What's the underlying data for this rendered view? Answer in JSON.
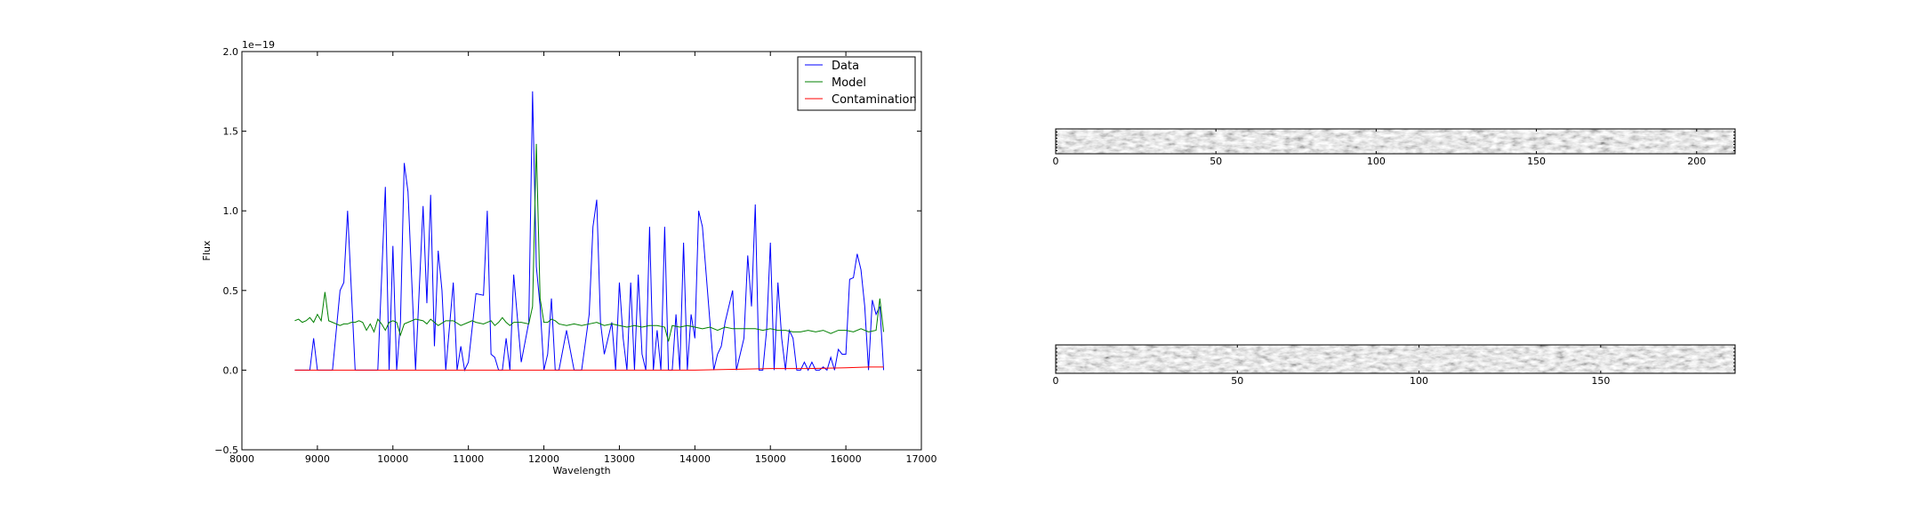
{
  "chart_data": [
    {
      "type": "line",
      "title": "",
      "xlabel": "Wavelength",
      "ylabel": "Flux",
      "y_offset_text": "1e−19",
      "xlim": [
        8000,
        17000
      ],
      "ylim": [
        -0.5,
        2.0
      ],
      "xticks": [
        "8000",
        "9000",
        "10000",
        "11000",
        "12000",
        "13000",
        "14000",
        "15000",
        "16000",
        "17000"
      ],
      "yticks": [
        "−0.5",
        "0.0",
        "0.5",
        "1.0",
        "1.5",
        "2.0"
      ],
      "grid": false,
      "legend": "top-right",
      "series": [
        {
          "name": "Data",
          "color": "#0000ff",
          "x": [
            8700,
            8800,
            8900,
            8950,
            9000,
            9100,
            9200,
            9300,
            9350,
            9400,
            9500,
            9600,
            9700,
            9800,
            9900,
            9950,
            10000,
            10050,
            10100,
            10150,
            10200,
            10300,
            10400,
            10450,
            10500,
            10550,
            10600,
            10650,
            10700,
            10800,
            10850,
            10900,
            10950,
            11000,
            11100,
            11200,
            11250,
            11300,
            11350,
            11400,
            11450,
            11500,
            11550,
            11600,
            11700,
            11800,
            11850,
            11900,
            11950,
            12000,
            12050,
            12100,
            12150,
            12200,
            12300,
            12400,
            12500,
            12600,
            12650,
            12700,
            12750,
            12800,
            12900,
            12950,
            13000,
            13050,
            13100,
            13150,
            13200,
            13250,
            13300,
            13350,
            13400,
            13450,
            13500,
            13550,
            13600,
            13650,
            13700,
            13750,
            13800,
            13850,
            13900,
            13950,
            14000,
            14050,
            14100,
            14150,
            14200,
            14250,
            14300,
            14350,
            14400,
            14450,
            14500,
            14550,
            14600,
            14650,
            14700,
            14750,
            14800,
            14850,
            14900,
            14950,
            15000,
            15050,
            15100,
            15150,
            15200,
            15250,
            15300,
            15350,
            15400,
            15450,
            15500,
            15550,
            15600,
            15650,
            15700,
            15750,
            15800,
            15850,
            15900,
            15950,
            16000,
            16050,
            16100,
            16150,
            16200,
            16250,
            16300,
            16350,
            16400,
            16450,
            16500
          ],
          "values": [
            0.0,
            0.0,
            0.0,
            0.2,
            0.0,
            0.0,
            0.0,
            0.5,
            0.55,
            1.0,
            0.0,
            0.0,
            0.0,
            0.0,
            1.15,
            0.0,
            0.78,
            0.0,
            0.3,
            1.3,
            1.12,
            0.0,
            1.03,
            0.42,
            1.1,
            0.15,
            0.75,
            0.5,
            0.0,
            0.55,
            0.0,
            0.15,
            0.0,
            0.05,
            0.48,
            0.47,
            1.0,
            0.1,
            0.08,
            0.0,
            0.0,
            0.2,
            0.0,
            0.6,
            0.05,
            0.3,
            1.75,
            0.65,
            0.4,
            0.0,
            0.1,
            0.45,
            0.0,
            0.0,
            0.25,
            0.0,
            0.0,
            0.35,
            0.9,
            1.07,
            0.3,
            0.1,
            0.3,
            0.0,
            0.55,
            0.2,
            0.0,
            0.55,
            0.0,
            0.6,
            0.1,
            0.0,
            0.9,
            0.0,
            0.25,
            0.0,
            0.9,
            0.0,
            0.0,
            0.35,
            0.0,
            0.8,
            0.0,
            0.35,
            0.2,
            1.0,
            0.9,
            0.6,
            0.3,
            0.0,
            0.1,
            0.15,
            0.3,
            0.4,
            0.5,
            0.0,
            0.1,
            0.2,
            0.72,
            0.4,
            1.04,
            0.0,
            0.0,
            0.25,
            0.8,
            0.0,
            0.55,
            0.2,
            0.0,
            0.25,
            0.2,
            0.0,
            0.0,
            0.05,
            0.0,
            0.05,
            0.0,
            0.0,
            0.02,
            0.0,
            0.08,
            0.0,
            0.13,
            0.1,
            0.1,
            0.57,
            0.58,
            0.73,
            0.63,
            0.4,
            0.0,
            0.44,
            0.35,
            0.4,
            0.0
          ]
        },
        {
          "name": "Model",
          "color": "#008000",
          "x": [
            8700,
            8750,
            8800,
            8850,
            8900,
            8950,
            9000,
            9050,
            9100,
            9150,
            9200,
            9250,
            9300,
            9350,
            9400,
            9450,
            9500,
            9550,
            9600,
            9650,
            9700,
            9750,
            9800,
            9850,
            9900,
            9950,
            10000,
            10050,
            10100,
            10150,
            10200,
            10300,
            10400,
            10450,
            10500,
            10550,
            10600,
            10700,
            10800,
            10900,
            11000,
            11050,
            11100,
            11200,
            11300,
            11350,
            11400,
            11450,
            11500,
            11550,
            11600,
            11700,
            11800,
            11850,
            11900,
            11950,
            12000,
            12050,
            12100,
            12150,
            12200,
            12300,
            12400,
            12500,
            12600,
            12700,
            12800,
            12900,
            13000,
            13100,
            13200,
            13300,
            13400,
            13500,
            13600,
            13650,
            13700,
            13800,
            13900,
            14000,
            14100,
            14200,
            14300,
            14400,
            14500,
            14600,
            14700,
            14800,
            14900,
            15000,
            15100,
            15200,
            15300,
            15400,
            15500,
            15600,
            15700,
            15800,
            15900,
            16000,
            16100,
            16200,
            16300,
            16400,
            16450,
            16500
          ],
          "values": [
            0.31,
            0.32,
            0.3,
            0.31,
            0.33,
            0.3,
            0.35,
            0.31,
            0.49,
            0.31,
            0.3,
            0.29,
            0.28,
            0.29,
            0.29,
            0.3,
            0.3,
            0.31,
            0.3,
            0.25,
            0.29,
            0.24,
            0.32,
            0.29,
            0.25,
            0.3,
            0.31,
            0.3,
            0.22,
            0.29,
            0.3,
            0.32,
            0.31,
            0.29,
            0.32,
            0.3,
            0.28,
            0.31,
            0.31,
            0.28,
            0.3,
            0.31,
            0.3,
            0.29,
            0.31,
            0.28,
            0.3,
            0.33,
            0.3,
            0.28,
            0.3,
            0.3,
            0.29,
            0.4,
            1.42,
            0.45,
            0.3,
            0.3,
            0.32,
            0.31,
            0.29,
            0.28,
            0.29,
            0.28,
            0.29,
            0.3,
            0.28,
            0.29,
            0.28,
            0.27,
            0.28,
            0.27,
            0.28,
            0.28,
            0.27,
            0.18,
            0.28,
            0.27,
            0.28,
            0.27,
            0.26,
            0.27,
            0.25,
            0.27,
            0.26,
            0.26,
            0.26,
            0.26,
            0.25,
            0.26,
            0.25,
            0.25,
            0.24,
            0.24,
            0.25,
            0.24,
            0.25,
            0.23,
            0.25,
            0.25,
            0.24,
            0.26,
            0.24,
            0.25,
            0.45,
            0.24
          ]
        },
        {
          "name": "Contamination",
          "color": "#ff0000",
          "x": [
            8700,
            9000,
            9500,
            10000,
            10500,
            11000,
            11500,
            12000,
            12500,
            13000,
            13500,
            14000,
            14500,
            15000,
            15500,
            16000,
            16300,
            16500
          ],
          "values": [
            0.0,
            0.0,
            0.0,
            0.0,
            0.0,
            0.0,
            0.0,
            0.0,
            0.0,
            0.0,
            0.0,
            0.0,
            0.005,
            0.01,
            0.01,
            0.015,
            0.02,
            0.02
          ]
        }
      ]
    },
    {
      "type": "heatmap",
      "title": "",
      "xlim": [
        0,
        212
      ],
      "xticks": [
        "0",
        "50",
        "100",
        "150",
        "200"
      ],
      "colormap": "gray"
    },
    {
      "type": "heatmap",
      "title": "",
      "xlim": [
        0,
        187
      ],
      "xticks": [
        "0",
        "50",
        "100",
        "150"
      ],
      "colormap": "gray"
    }
  ]
}
